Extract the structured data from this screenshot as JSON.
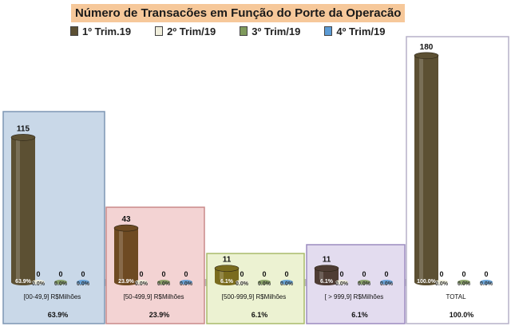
{
  "chart_data": {
    "type": "bar",
    "title": "Número de Transacões em Função do Porte da Operacão",
    "series": [
      {
        "name": "1º Trim.19",
        "color": "#5c5033",
        "values": [
          115,
          43,
          11,
          11,
          180
        ],
        "pct_labels": [
          "63.9%",
          "23.9%",
          "6.1%",
          "6.1%",
          "100.0%"
        ]
      },
      {
        "name": "2º Trim/19",
        "color": "#f0eedc",
        "values": [
          0,
          0,
          0,
          0,
          0
        ],
        "pct_labels": [
          "0.0%",
          "0.0%",
          "0.0%",
          "0.0%",
          "0.0%"
        ]
      },
      {
        "name": "3º Trim/19",
        "color": "#7f9a5c",
        "values": [
          0,
          0,
          0,
          0,
          0
        ],
        "pct_labels": [
          "0.0%",
          "0.0%",
          "0.0%",
          "0.0%",
          "0.0%"
        ]
      },
      {
        "name": "4º Trim/19",
        "color": "#5b9bd5",
        "values": [
          0,
          0,
          0,
          0,
          0
        ],
        "pct_labels": [
          "0.0%",
          "0.0%",
          "0.0%",
          "0.0%",
          "0.0%"
        ]
      }
    ],
    "groups": [
      {
        "label": "[00-49,9] R$Milhões",
        "share": "63.9%",
        "bg": "#c9d8e8",
        "border": "#7d96b4",
        "bar_color": "#5c5033"
      },
      {
        "label": "[50-499,9] R$Milhões",
        "share": "23.9%",
        "bg": "#f3d3d3",
        "border": "#c98a8a",
        "bar_color": "#6e4a22"
      },
      {
        "label": "[500-999,9] R$Milhões",
        "share": "6.1%",
        "bg": "#ecf2d2",
        "border": "#a9ba6a",
        "bar_color": "#7a6c1e"
      },
      {
        "label": "[ > 999,9] R$Milhões",
        "share": "6.1%",
        "bg": "#e3dcef",
        "border": "#9c8bbf",
        "bar_color": "#4e3c34"
      },
      {
        "label": "TOTAL",
        "share": "100.0%",
        "bg": "#ffffff",
        "border": "#b6b0c8",
        "bar_color": "#5c5033"
      }
    ],
    "ylim": [
      0,
      190
    ],
    "grid": false,
    "legend_position": "top"
  }
}
